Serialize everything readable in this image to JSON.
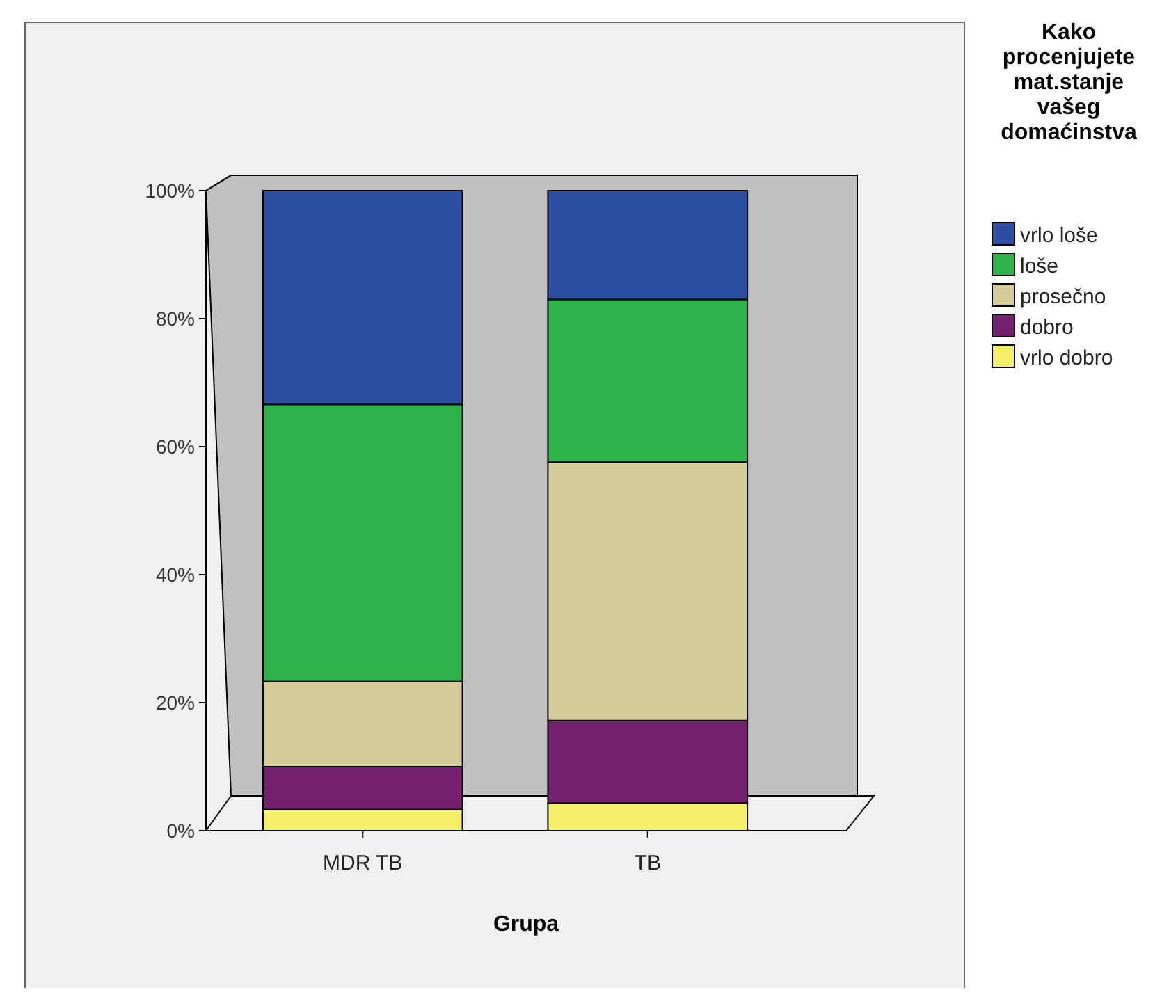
{
  "chart_data": {
    "type": "bar",
    "stacked": true,
    "xlabel": "Grupa",
    "legend_title": "Kako procenjujete mat.stanje vašeg domaćinstva",
    "categories": [
      "MDR TB",
      "TB"
    ],
    "series": [
      {
        "name": "vrlo dobro",
        "color": "#f5ef6a",
        "values": [
          3.3,
          4.3
        ]
      },
      {
        "name": "dobro",
        "color": "#73206f",
        "values": [
          6.7,
          12.9
        ]
      },
      {
        "name": "prosečno",
        "color": "#d4cc99",
        "values": [
          13.3,
          40.4
        ]
      },
      {
        "name": "loše",
        "color": "#2db34a",
        "values": [
          43.3,
          25.4
        ]
      },
      {
        "name": "vrlo loše",
        "color": "#2c4fa3",
        "values": [
          33.4,
          17.0
        ]
      }
    ],
    "ylim": [
      0,
      100
    ],
    "yticks": [
      {
        "value": 0,
        "label": "0%"
      },
      {
        "value": 20,
        "label": "20%"
      },
      {
        "value": 40,
        "label": "40%"
      },
      {
        "value": 60,
        "label": "60%"
      },
      {
        "value": 80,
        "label": "80%"
      },
      {
        "value": 100,
        "label": "100%"
      }
    ],
    "legend": "right"
  }
}
